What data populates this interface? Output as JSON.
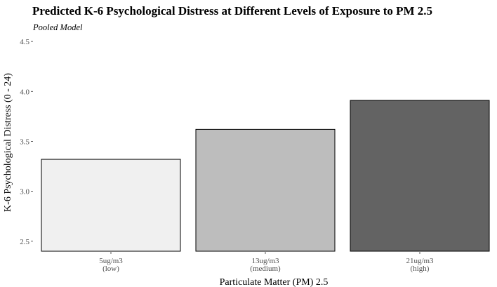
{
  "chart_data": {
    "type": "bar",
    "title": "Predicted K-6 Psychological Distress at Different Levels of Exposure to PM 2.5",
    "subtitle": "Pooled Model",
    "xlabel": "Particulate Matter (PM) 2.5",
    "ylabel": "K-6 Psychological Distress (0 - 24)",
    "categories": [
      {
        "line1": "5ug/m3",
        "line2": "(low)"
      },
      {
        "line1": "13ug/m3",
        "line2": "(medium)"
      },
      {
        "line1": "21ug/m3",
        "line2": "(high)"
      }
    ],
    "values": [
      3.32,
      3.62,
      3.91
    ],
    "colors": [
      "#f0f0f0",
      "#bdbdbd",
      "#636363"
    ],
    "ylim": [
      2.4,
      4.55
    ],
    "yticks": [
      "2.5",
      "3.0",
      "3.5",
      "4.0",
      "4.5"
    ],
    "grid": false,
    "legend": "none"
  }
}
